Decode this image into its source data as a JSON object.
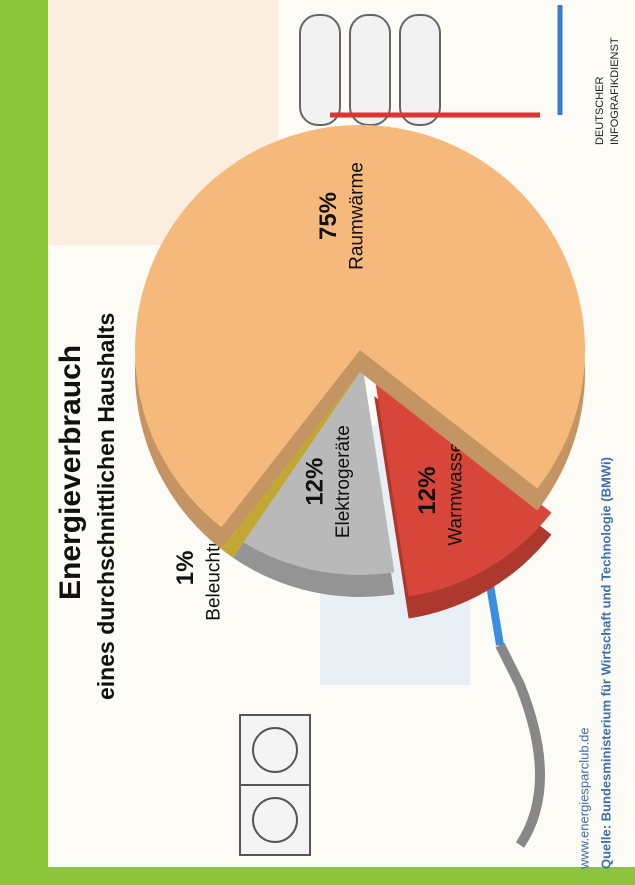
{
  "chart_data": {
    "type": "pie",
    "title": "Energieverbrauch",
    "subtitle": "eines durchschnittlichen Haushalts",
    "categories": [
      "Warmwasser",
      "Elektrogeräte",
      "Beleuchtung",
      "Raumwärme"
    ],
    "values": [
      12,
      12,
      1,
      75
    ],
    "value_labels": [
      "12%",
      "12%",
      "1%",
      "75%"
    ],
    "colors": [
      "#d8463a",
      "#b9b9b9",
      "#f2d23c",
      "#f6b97c"
    ],
    "source_url": "www.energiesparclub.de",
    "source": "Quelle: Bundesministerium für Wirtschaft und Technologie (BMWi)",
    "brand": [
      "DEUTSCHER",
      "INFOGRAFIKDIENST"
    ]
  }
}
